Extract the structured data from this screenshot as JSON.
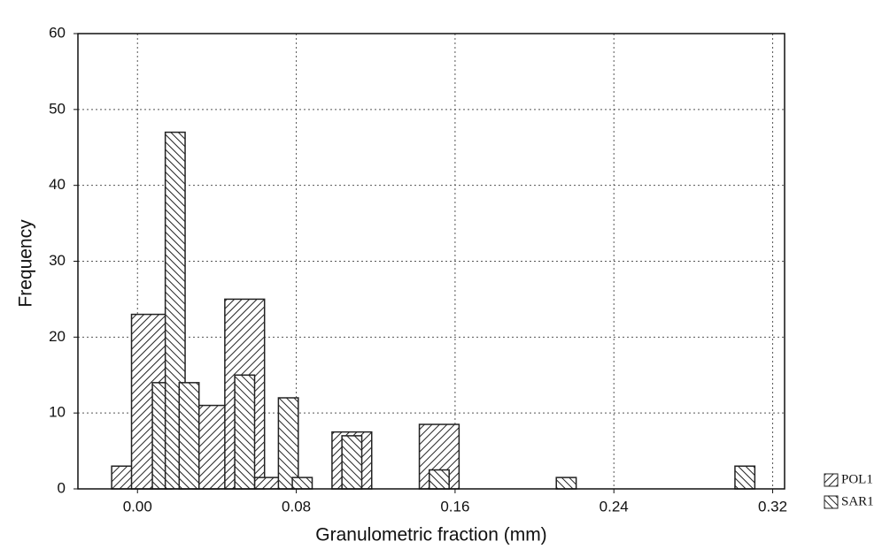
{
  "chart_data": {
    "type": "histogram",
    "xlabel": "Granulometric fraction (mm)",
    "ylabel": "Frequency",
    "xlim": [
      -0.03,
      0.326
    ],
    "ylim": [
      0,
      60
    ],
    "xticks": [
      {
        "value": 0,
        "label": "0.00"
      },
      0.08,
      0.16,
      0.24,
      0.32
    ],
    "yticks": [
      0,
      10,
      20,
      30,
      40,
      50,
      60
    ],
    "grid": true,
    "legend": "bottom-right",
    "series": [
      {
        "name": "POL1",
        "color": "#222222",
        "x": [
          -0.003,
          0.007,
          0.031,
          0.038,
          0.054,
          0.069,
          0.108,
          0.152
        ],
        "values": [
          3,
          23,
          10,
          11,
          25,
          1.5,
          7.5,
          8.5
        ]
      },
      {
        "name": "SAR1",
        "color": "#222222",
        "x": [
          0.0125,
          0.019,
          0.026,
          0.054,
          0.076,
          0.083,
          0.108,
          0.152,
          0.216,
          0.306
        ],
        "values": [
          14,
          47,
          14,
          15,
          12,
          1.5,
          7,
          2.5,
          1.5,
          3
        ]
      }
    ]
  }
}
